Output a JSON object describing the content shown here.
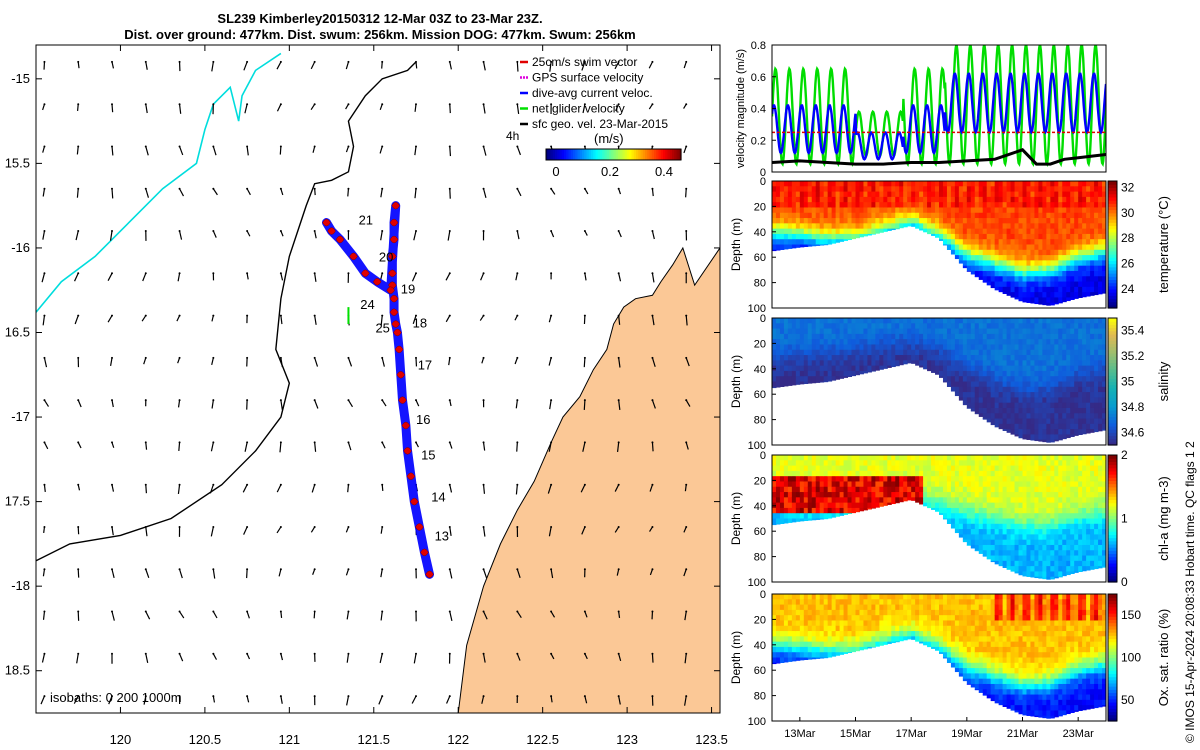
{
  "title": {
    "line1": "SL239 Kimberley20150312 12-Mar 03Z to 23-Mar 23Z.",
    "line2": "Dist. over ground: 477km. Dist. swum: 256km. Mission DOG: 477km. Swum: 256km"
  },
  "credit": "© IMOS 15-Apr-2024 20:08:33 Hobart time. QC flags 1  2",
  "colors": {
    "land": "#fbc896",
    "coast": "#000000",
    "isobath_200": "#000000",
    "isobath_1000": "#00dddd",
    "swim": "#e00000",
    "gps": "#dd00dd",
    "dac": "#0000ff",
    "net": "#00e000",
    "sfc": "#000000"
  },
  "chart_data": [
    {
      "id": "map",
      "type": "scatter",
      "title": "",
      "xlabel": "",
      "ylabel": "",
      "xlim": [
        119.5,
        123.55
      ],
      "ylim": [
        -18.75,
        -14.8
      ],
      "xticks": [
        120,
        120.5,
        121,
        121.5,
        122,
        122.5,
        123,
        123.5
      ],
      "yticks": [
        -15,
        -15.5,
        -16,
        -16.5,
        -17,
        -17.5,
        -18,
        -18.5
      ],
      "xtick_labels": [
        "120",
        "120.5",
        "121",
        "121.5",
        "122",
        "122.5",
        "123",
        "123.5"
      ],
      "ytick_labels": [
        "-15",
        "15.5",
        "-16",
        "16.5",
        "-17",
        "17.5",
        "-18",
        "18.5"
      ],
      "legend": [
        "25cm/s swim vector",
        "GPS surface velocity",
        "dive-avg current veloc.",
        "net glider velocity",
        "sfc geo. vel. 23-Mar-2015"
      ],
      "legend_position": "top-right",
      "colorbar": {
        "label": "(m/s)",
        "ticks": [
          0,
          0.2,
          0.4
        ],
        "tick_labels": [
          "0",
          "0.2",
          "0.4"
        ],
        "range": [
          0,
          0.5
        ]
      },
      "scale_label": "4h",
      "isobath_label": "isobaths: 0   200  1000m",
      "track": {
        "lon": [
          121.83,
          121.8,
          121.77,
          121.74,
          121.72,
          121.7,
          121.69,
          121.67,
          121.66,
          121.65,
          121.64,
          121.63,
          121.62,
          121.62,
          121.61,
          121.61,
          121.61,
          121.62,
          121.62,
          121.63,
          121.6,
          121.52,
          121.45,
          121.38,
          121.3,
          121.25,
          121.22
        ],
        "lat": [
          -17.93,
          -17.8,
          -17.65,
          -17.5,
          -17.35,
          -17.2,
          -17.05,
          -16.9,
          -16.75,
          -16.6,
          -16.5,
          -16.45,
          -16.38,
          -16.3,
          -16.22,
          -16.15,
          -16.05,
          -15.95,
          -15.85,
          -15.75,
          -16.25,
          -16.2,
          -16.15,
          -16.05,
          -15.95,
          -15.9,
          -15.85
        ]
      },
      "day_labels": [
        {
          "label": "13",
          "lon": 121.86,
          "lat": -17.73
        },
        {
          "label": "14",
          "lon": 121.84,
          "lat": -17.5
        },
        {
          "label": "15",
          "lon": 121.78,
          "lat": -17.25
        },
        {
          "label": "16",
          "lon": 121.75,
          "lat": -17.04
        },
        {
          "label": "17",
          "lon": 121.76,
          "lat": -16.72
        },
        {
          "label": "18",
          "lon": 121.73,
          "lat": -16.47
        },
        {
          "label": "19",
          "lon": 121.66,
          "lat": -16.27
        },
        {
          "label": "20",
          "lon": 121.53,
          "lat": -16.08
        },
        {
          "label": "21",
          "lon": 121.41,
          "lat": -15.86
        },
        {
          "label": "24",
          "lon": 121.42,
          "lat": -16.36
        },
        {
          "label": "25",
          "lon": 121.51,
          "lat": -16.5
        }
      ],
      "coastline": {
        "lon": [
          122.0,
          122.05,
          122.15,
          122.25,
          122.35,
          122.45,
          122.55,
          122.62,
          122.72,
          122.8,
          122.88,
          122.92,
          122.98,
          123.05,
          123.15,
          123.2,
          123.27,
          123.33,
          123.4,
          123.55
        ],
        "lat": [
          -18.75,
          -18.35,
          -18.0,
          -17.75,
          -17.55,
          -17.38,
          -17.15,
          -17.0,
          -16.88,
          -16.72,
          -16.6,
          -16.45,
          -16.35,
          -16.3,
          -16.28,
          -16.2,
          -16.1,
          -16.0,
          -16.22,
          -16.0
        ]
      },
      "isobath_200": {
        "lon": [
          119.5,
          119.7,
          120.0,
          120.3,
          120.6,
          120.8,
          120.95,
          121.0,
          120.92,
          120.95,
          121.0,
          121.05,
          121.1,
          121.15,
          121.25,
          121.35,
          121.38,
          121.35,
          121.45,
          121.55,
          121.7,
          121.75
        ],
        "lat": [
          -17.85,
          -17.75,
          -17.7,
          -17.6,
          -17.4,
          -17.2,
          -17.0,
          -16.8,
          -16.6,
          -16.3,
          -16.05,
          -15.9,
          -15.75,
          -15.62,
          -15.6,
          -15.55,
          -15.4,
          -15.25,
          -15.1,
          -15.0,
          -14.95,
          -14.9
        ]
      },
      "isobath_1000": {
        "lon": [
          119.5,
          119.65,
          119.85,
          120.05,
          120.25,
          120.45,
          120.5,
          120.55,
          120.65,
          120.7,
          120.72,
          120.8,
          120.95
        ],
        "lat": [
          -16.38,
          -16.2,
          -16.05,
          -15.85,
          -15.65,
          -15.5,
          -15.3,
          -15.15,
          -15.05,
          -15.25,
          -15.1,
          -14.95,
          -14.85
        ]
      }
    },
    {
      "id": "velocity",
      "type": "line",
      "title": "",
      "xlabel": "",
      "ylabel": "velocity magnitude (m/s)",
      "xlim": [
        12.0,
        24.0
      ],
      "ylim": [
        0,
        0.8
      ],
      "yticks": [
        0,
        0.2,
        0.4,
        0.6,
        0.8
      ],
      "ytick_labels": [
        "0",
        "0.2",
        "0.4",
        "0.6",
        "0.8"
      ],
      "series": [
        {
          "name": "swim speed 25cm/s",
          "color": "#e00000",
          "x": [
            12.0,
            24.0
          ],
          "y": [
            0.25,
            0.25
          ]
        },
        {
          "name": "sfc geo. vel.",
          "color": "#000000",
          "x": [
            12.0,
            13.0,
            14.0,
            15.0,
            16.0,
            17.0,
            18.0,
            19.0,
            20.0,
            20.5,
            21.0,
            21.5,
            22.0,
            22.5,
            23.0,
            23.5,
            24.0
          ],
          "y": [
            0.06,
            0.07,
            0.06,
            0.05,
            0.05,
            0.06,
            0.06,
            0.07,
            0.08,
            0.11,
            0.14,
            0.05,
            0.05,
            0.08,
            0.09,
            0.1,
            0.11
          ]
        }
      ],
      "oscillating_series": [
        {
          "name": "dive-avg current veloc.",
          "color": "#0000ff",
          "period_days": 0.5,
          "segments": [
            {
              "x0": 12.0,
              "x1": 15.0,
              "lo": 0.12,
              "hi": 0.42
            },
            {
              "x0": 15.0,
              "x1": 16.7,
              "lo": 0.08,
              "hi": 0.25
            },
            {
              "x0": 16.7,
              "x1": 18.2,
              "lo": 0.12,
              "hi": 0.42
            },
            {
              "x0": 18.2,
              "x1": 24.0,
              "lo": 0.25,
              "hi": 0.62
            }
          ]
        },
        {
          "name": "net glider velocity",
          "color": "#00dd00",
          "period_days": 0.5,
          "segments": [
            {
              "x0": 12.0,
              "x1": 15.0,
              "lo": 0.05,
              "hi": 0.65
            },
            {
              "x0": 15.0,
              "x1": 16.7,
              "lo": 0.1,
              "hi": 0.38
            },
            {
              "x0": 16.7,
              "x1": 18.2,
              "lo": 0.05,
              "hi": 0.65
            },
            {
              "x0": 18.2,
              "x1": 24.0,
              "lo": 0.05,
              "hi": 0.8
            }
          ]
        }
      ]
    },
    {
      "id": "temperature",
      "type": "heatmap",
      "ylabel": "Depth (m)",
      "colorbar_label": "temperature (°C)",
      "xlim": [
        12.0,
        24.0
      ],
      "ylim": [
        100,
        0
      ],
      "yticks": [
        0,
        20,
        40,
        60,
        80,
        100
      ],
      "ytick_labels": [
        "0",
        "20",
        "40",
        "60",
        "80",
        "100"
      ],
      "colorbar_ticks": [
        24,
        26,
        28,
        30,
        32
      ],
      "colorbar_tick_labels": [
        "24",
        "26",
        "28",
        "30",
        "32"
      ],
      "cmin": 22.5,
      "cmax": 32.5,
      "surface_value": 30.6,
      "bottom_value": 23.5,
      "thermocline_depth": [
        40,
        42,
        45,
        45,
        38,
        32,
        42,
        58,
        65,
        72,
        70,
        60,
        55
      ],
      "bottom_depth": [
        55,
        52,
        50,
        45,
        40,
        35,
        45,
        70,
        85,
        95,
        98,
        92,
        88
      ]
    },
    {
      "id": "salinity",
      "type": "heatmap",
      "ylabel": "Depth (m)",
      "colorbar_label": "salinity",
      "xlim": [
        12.0,
        24.0
      ],
      "ylim": [
        100,
        0
      ],
      "yticks": [
        0,
        20,
        40,
        60,
        80,
        100
      ],
      "ytick_labels": [
        "0",
        "20",
        "40",
        "60",
        "80",
        "100"
      ],
      "colorbar_ticks": [
        34.6,
        34.8,
        35.0,
        35.2,
        35.4
      ],
      "colorbar_tick_labels": [
        "34.6",
        "34.8",
        "35",
        "35.2",
        "35.4"
      ],
      "cmin": 34.5,
      "cmax": 35.5,
      "surface_value": 34.7,
      "bottom_value": 34.52,
      "thermocline_depth": [
        30,
        30,
        28,
        25,
        22,
        20,
        25,
        40,
        50,
        58,
        55,
        45,
        40
      ],
      "bottom_depth": [
        55,
        52,
        50,
        45,
        40,
        35,
        45,
        70,
        85,
        95,
        98,
        92,
        88
      ]
    },
    {
      "id": "chla",
      "type": "heatmap",
      "ylabel": "Depth (m)",
      "colorbar_label": "chl-a (mg m-3)",
      "xlim": [
        12.0,
        24.0
      ],
      "ylim": [
        100,
        0
      ],
      "yticks": [
        0,
        20,
        40,
        60,
        80,
        100
      ],
      "ytick_labels": [
        "0",
        "20",
        "40",
        "60",
        "80",
        "100"
      ],
      "colorbar_ticks": [
        0,
        1,
        2
      ],
      "colorbar_tick_labels": [
        "0",
        "1",
        "2"
      ],
      "cmin": 0,
      "cmax": 2,
      "surface_value": 1.2,
      "bottom_value": 0.6,
      "thermocline_depth": [
        35,
        38,
        40,
        42,
        35,
        30,
        38,
        45,
        50,
        55,
        55,
        48,
        45
      ],
      "bottom_depth": [
        55,
        52,
        50,
        45,
        40,
        35,
        45,
        70,
        85,
        95,
        98,
        92,
        88
      ]
    },
    {
      "id": "oxygen",
      "type": "heatmap",
      "ylabel": "Depth (m)",
      "colorbar_label": "Ox. sat. ratio (%)",
      "xlim": [
        12.0,
        24.0
      ],
      "ylim": [
        100,
        0
      ],
      "yticks": [
        0,
        20,
        40,
        60,
        80,
        100
      ],
      "ytick_labels": [
        "0",
        "20",
        "40",
        "60",
        "80",
        "100"
      ],
      "colorbar_ticks": [
        50,
        100,
        150
      ],
      "colorbar_tick_labels": [
        "50",
        "100",
        "150"
      ],
      "xticks": [
        13,
        15,
        17,
        19,
        21,
        23
      ],
      "xtick_labels": [
        "13Mar",
        "15Mar",
        "17Mar",
        "19Mar",
        "21Mar",
        "23Mar"
      ],
      "cmin": 25,
      "cmax": 175,
      "surface_value": 128,
      "bottom_value": 45,
      "thermocline_depth": [
        40,
        42,
        45,
        45,
        38,
        32,
        42,
        58,
        65,
        72,
        70,
        60,
        55
      ],
      "bottom_depth": [
        55,
        52,
        50,
        45,
        40,
        35,
        45,
        70,
        85,
        95,
        98,
        92,
        88
      ]
    }
  ]
}
